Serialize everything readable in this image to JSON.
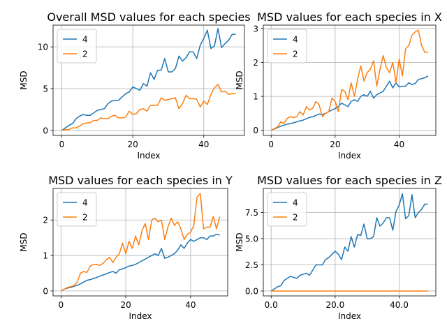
{
  "chart_data": [
    {
      "type": "line",
      "title": "Overall MSD values for each species",
      "xlabel": "Index",
      "ylabel": "MSD",
      "xlim": [
        -2.45,
        51.45
      ],
      "ylim": [
        -0.6,
        12.6
      ],
      "xticks": [
        0,
        20,
        40
      ],
      "yticks": [
        0,
        5,
        10
      ],
      "grid": true,
      "legend": "upper left",
      "series": [
        {
          "name": "4",
          "color": "#1f77b4",
          "y": [
            0.0,
            0.3,
            0.6,
            0.8,
            1.4,
            1.7,
            1.9,
            1.8,
            1.8,
            2.1,
            2.4,
            2.5,
            2.6,
            3.2,
            3.5,
            3.6,
            3.6,
            4.0,
            4.4,
            4.6,
            5.2,
            5.0,
            4.8,
            5.6,
            5.3,
            6.9,
            6.1,
            7.2,
            7.2,
            8.6,
            7.0,
            7.0,
            7.4,
            8.9,
            8.3,
            8.7,
            9.4,
            9.4,
            8.6,
            10.2,
            11.0,
            12.0,
            9.8,
            10.1,
            12.2,
            9.9,
            10.4,
            10.8,
            11.5,
            11.5
          ]
        },
        {
          "name": "2",
          "color": "#ff7f0e",
          "y": [
            0.0,
            0.1,
            0.1,
            0.3,
            0.3,
            0.5,
            0.8,
            0.9,
            0.9,
            1.2,
            1.2,
            1.5,
            1.4,
            1.4,
            1.7,
            1.8,
            1.5,
            1.5,
            1.6,
            2.3,
            1.9,
            2.0,
            2.5,
            2.6,
            2.3,
            3.0,
            3.0,
            3.0,
            3.9,
            3.6,
            3.7,
            3.8,
            3.9,
            2.6,
            3.2,
            4.2,
            3.8,
            3.8,
            3.7,
            2.8,
            3.5,
            3.1,
            4.3,
            5.1,
            5.5,
            4.6,
            4.7,
            4.3,
            4.4,
            4.4
          ]
        }
      ]
    },
    {
      "type": "line",
      "title": "MSD values for each species in X",
      "xlabel": "Index",
      "ylabel": "MSD",
      "xlim": [
        -2.45,
        51.45
      ],
      "ylim": [
        -0.15,
        3.1
      ],
      "xticks": [
        0,
        20,
        40
      ],
      "yticks": [
        0,
        1,
        2,
        3
      ],
      "grid": true,
      "legend": "upper left",
      "series": [
        {
          "name": "4",
          "color": "#1f77b4",
          "y": [
            0.0,
            0.04,
            0.08,
            0.12,
            0.15,
            0.18,
            0.2,
            0.22,
            0.25,
            0.28,
            0.3,
            0.34,
            0.38,
            0.4,
            0.44,
            0.48,
            0.46,
            0.5,
            0.55,
            0.6,
            0.64,
            0.7,
            0.8,
            0.75,
            0.7,
            0.85,
            0.9,
            0.85,
            1.0,
            1.05,
            1.0,
            1.15,
            0.95,
            1.05,
            1.1,
            1.15,
            1.3,
            1.45,
            1.25,
            1.4,
            1.28,
            1.3,
            1.3,
            1.4,
            1.35,
            1.38,
            1.5,
            1.52,
            1.55,
            1.6
          ]
        },
        {
          "name": "2",
          "color": "#ff7f0e",
          "y": [
            0.0,
            0.05,
            0.1,
            0.25,
            0.2,
            0.35,
            0.4,
            0.38,
            0.4,
            0.55,
            0.45,
            0.7,
            0.6,
            0.65,
            0.85,
            0.75,
            0.4,
            0.5,
            0.55,
            0.95,
            0.85,
            0.55,
            1.2,
            1.15,
            0.9,
            1.4,
            1.0,
            1.5,
            1.9,
            1.45,
            1.7,
            1.8,
            2.05,
            1.3,
            1.8,
            2.2,
            1.85,
            1.7,
            2.0,
            1.4,
            2.1,
            1.6,
            2.4,
            2.5,
            2.8,
            2.9,
            2.95,
            2.5,
            2.3,
            2.3
          ]
        }
      ]
    },
    {
      "type": "line",
      "title": "MSD values for each species in Y",
      "xlabel": "Index",
      "ylabel": "MSD",
      "xlim": [
        -2.45,
        51.45
      ],
      "ylim": [
        -0.14,
        2.89
      ],
      "xticks": [
        0,
        20,
        40
      ],
      "yticks": [
        0,
        1,
        2
      ],
      "grid": true,
      "legend": "upper left",
      "series": [
        {
          "name": "4",
          "color": "#1f77b4",
          "y": [
            0.0,
            0.05,
            0.08,
            0.1,
            0.13,
            0.16,
            0.2,
            0.25,
            0.3,
            0.32,
            0.35,
            0.38,
            0.42,
            0.45,
            0.48,
            0.52,
            0.55,
            0.5,
            0.6,
            0.62,
            0.66,
            0.7,
            0.72,
            0.75,
            0.8,
            0.85,
            0.9,
            0.95,
            1.0,
            1.05,
            1.0,
            1.2,
            0.92,
            0.95,
            1.0,
            1.05,
            1.15,
            1.3,
            1.2,
            1.35,
            1.45,
            1.4,
            1.45,
            1.5,
            1.5,
            1.45,
            1.55,
            1.55,
            1.6,
            1.57
          ]
        },
        {
          "name": "2",
          "color": "#ff7f0e",
          "y": [
            0.0,
            0.05,
            0.1,
            0.12,
            0.15,
            0.25,
            0.5,
            0.55,
            0.52,
            0.7,
            0.75,
            0.75,
            0.72,
            0.78,
            0.88,
            0.95,
            0.8,
            0.95,
            1.05,
            1.35,
            1.05,
            1.4,
            1.2,
            1.55,
            1.3,
            1.7,
            1.9,
            1.45,
            2.0,
            2.05,
            1.95,
            2.0,
            1.45,
            1.8,
            2.05,
            1.85,
            1.95,
            1.75,
            1.45,
            1.6,
            1.65,
            1.85,
            2.65,
            2.75,
            1.75,
            1.8,
            1.8,
            2.1,
            1.75,
            2.1
          ]
        }
      ]
    },
    {
      "type": "line",
      "title": "MSD values for each species in Z",
      "xlabel": "Index",
      "ylabel": "MSD",
      "xlim": [
        -2.45,
        51.45
      ],
      "ylim": [
        -0.47,
        9.8
      ],
      "xticks": [
        0,
        20,
        40
      ],
      "yticks": [
        0.0,
        2.5,
        5.0,
        7.5
      ],
      "tick_format": "fixed1",
      "grid": true,
      "legend": "upper left",
      "series": [
        {
          "name": "4",
          "color": "#1f77b4",
          "y": [
            0.0,
            0.2,
            0.4,
            0.5,
            1.0,
            1.2,
            1.4,
            1.3,
            1.2,
            1.5,
            1.6,
            1.7,
            1.5,
            2.0,
            2.5,
            2.5,
            2.5,
            3.0,
            3.2,
            3.5,
            3.8,
            3.5,
            3.0,
            4.2,
            3.8,
            5.2,
            4.2,
            5.4,
            5.3,
            6.4,
            5.0,
            5.0,
            5.2,
            7.0,
            6.2,
            6.5,
            7.0,
            7.0,
            5.8,
            7.6,
            8.2,
            9.3,
            6.9,
            7.2,
            9.2,
            7.0,
            7.5,
            7.8,
            8.3,
            8.3
          ]
        },
        {
          "name": "2",
          "color": "#ff7f0e",
          "y": [
            0.0,
            0.0,
            0.0,
            0.0,
            0.0,
            0.0,
            0.0,
            0.0,
            0.0,
            0.0,
            0.0,
            0.0,
            0.0,
            0.0,
            0.0,
            0.0,
            0.0,
            0.0,
            0.0,
            0.0,
            0.0,
            0.0,
            0.0,
            0.0,
            0.0,
            0.0,
            0.0,
            0.0,
            0.0,
            0.0,
            0.0,
            0.0,
            0.0,
            0.0,
            0.0,
            0.0,
            0.0,
            0.0,
            0.0,
            0.0,
            0.0,
            0.0,
            0.0,
            0.0,
            0.0,
            0.0,
            0.0,
            0.0,
            0.0,
            0.0
          ]
        }
      ]
    }
  ]
}
